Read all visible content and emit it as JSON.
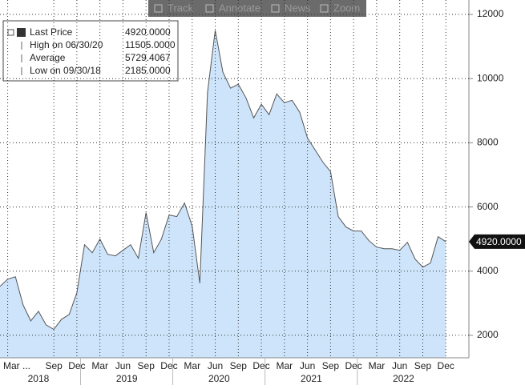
{
  "chart_data": {
    "type": "area",
    "toolbar": [
      "Track",
      "Annotate",
      "News",
      "Zoom"
    ],
    "legend": [
      {
        "name": "Last Price",
        "value": "4920.0000"
      },
      {
        "name": "High on 06/30/20",
        "value": "11505.0000"
      },
      {
        "name": "Average",
        "value": "5729.4067"
      },
      {
        "name": "Low on 09/30/18",
        "value": "2185.0000"
      }
    ],
    "last_value_label": "4920.0000",
    "x": [
      "2018-02",
      "2018-03",
      "2018-04",
      "2018-05",
      "2018-06",
      "2018-07",
      "2018-08",
      "2018-09",
      "2018-10",
      "2018-11",
      "2018-12",
      "2019-01",
      "2019-02",
      "2019-03",
      "2019-04",
      "2019-05",
      "2019-06",
      "2019-07",
      "2019-08",
      "2019-09",
      "2019-10",
      "2019-11",
      "2019-12",
      "2020-01",
      "2020-02",
      "2020-03",
      "2020-04",
      "2020-05",
      "2020-06",
      "2020-07",
      "2020-08",
      "2020-09",
      "2020-10",
      "2020-11",
      "2020-12",
      "2021-01",
      "2021-02",
      "2021-03",
      "2021-04",
      "2021-05",
      "2021-06",
      "2021-07",
      "2021-08",
      "2021-09",
      "2021-10",
      "2021-11",
      "2021-12",
      "2022-01",
      "2022-02",
      "2022-03",
      "2022-04",
      "2022-05",
      "2022-06",
      "2022-07",
      "2022-08",
      "2022-09",
      "2022-10",
      "2022-11",
      "2022-12"
    ],
    "series": [
      {
        "name": "Last Price",
        "color": "#cde4fb",
        "line_color": "#555555",
        "values": [
          3525,
          3750,
          3825,
          2950,
          2450,
          2750,
          2325,
          2185,
          2500,
          2650,
          3325,
          4825,
          4575,
          5000,
          4525,
          4475,
          4650,
          4825,
          4400,
          5825,
          4575,
          5000,
          5750,
          5700,
          6125,
          5400,
          3625,
          9575,
          11505,
          10200,
          9700,
          9825,
          9400,
          8775,
          9200,
          8875,
          9525,
          9250,
          9325,
          8950,
          8150,
          7775,
          7400,
          7100,
          5700,
          5375,
          5250,
          5250,
          4950,
          4750,
          4700,
          4700,
          4650,
          4900,
          4375,
          4125,
          4250,
          5075,
          4920
        ]
      }
    ],
    "xlim": [
      "2018-02",
      "2023-03"
    ],
    "xticks": [
      {
        "value": "2018-03",
        "label": "Mar ..."
      },
      {
        "value": "2018-09",
        "label": "Sep"
      },
      {
        "value": "2018-12",
        "label": "Dec"
      },
      {
        "value": "2019-03",
        "label": "Mar"
      },
      {
        "value": "2019-06",
        "label": "Jun"
      },
      {
        "value": "2019-09",
        "label": "Sep"
      },
      {
        "value": "2019-12",
        "label": "Dec"
      },
      {
        "value": "2020-03",
        "label": "Mar"
      },
      {
        "value": "2020-06",
        "label": "Jun"
      },
      {
        "value": "2020-09",
        "label": "Sep"
      },
      {
        "value": "2020-12",
        "label": "Dec"
      },
      {
        "value": "2021-03",
        "label": "Mar"
      },
      {
        "value": "2021-06",
        "label": "Jun"
      },
      {
        "value": "2021-09",
        "label": "Sep"
      },
      {
        "value": "2021-12",
        "label": "Dec"
      },
      {
        "value": "2022-03",
        "label": "Mar"
      },
      {
        "value": "2022-06",
        "label": "Jun"
      },
      {
        "value": "2022-09",
        "label": "Sep"
      },
      {
        "value": "2022-12",
        "label": "Dec"
      }
    ],
    "x_year_labels": [
      "2018",
      "2019",
      "2020",
      "2021",
      "2022"
    ],
    "ylim": [
      1300,
      12450
    ],
    "yticks": [
      2000,
      4000,
      6000,
      8000,
      10000,
      12000
    ],
    "grid": true
  }
}
